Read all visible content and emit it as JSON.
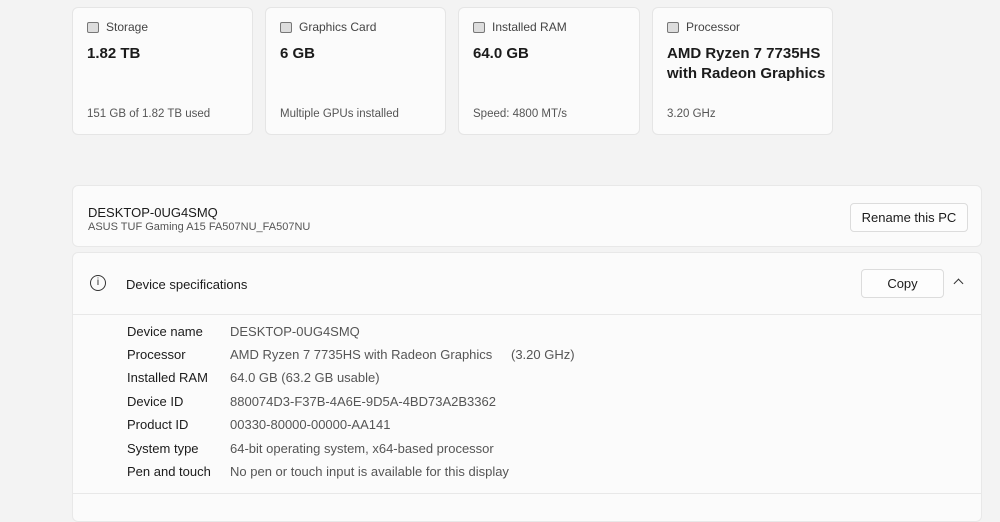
{
  "cards": [
    {
      "label": "Storage",
      "icon": "storage-icon",
      "value": "1.82 TB",
      "sub": "151 GB of 1.82 TB used"
    },
    {
      "label": "Graphics Card",
      "icon": "graphics-card-icon",
      "value": "6 GB",
      "sub": "Multiple GPUs installed"
    },
    {
      "label": "Installed RAM",
      "icon": "ram-icon",
      "value": "64.0 GB",
      "sub": "Speed: 4800 MT/s"
    },
    {
      "label": "Processor",
      "icon": "processor-icon",
      "value": "AMD Ryzen 7 7735HS with Radeon Graphics",
      "sub": "3.20 GHz"
    }
  ],
  "device": {
    "name": "DESKTOP-0UG4SMQ",
    "model": "ASUS TUF Gaming A15 FA507NU_FA507NU",
    "rename_label": "Rename this PC"
  },
  "specs": {
    "title": "Device specifications",
    "copy_label": "Copy",
    "rows": [
      {
        "k": "Device name",
        "v": "DESKTOP-0UG4SMQ"
      },
      {
        "k": "Processor",
        "v": "AMD Ryzen 7 7735HS with Radeon Graphics",
        "extra": "(3.20 GHz)"
      },
      {
        "k": "Installed RAM",
        "v": "64.0 GB (63.2 GB usable)"
      },
      {
        "k": "Device ID",
        "v": "880074D3-F37B-4A6E-9D5A-4BD73A2B3362"
      },
      {
        "k": "Product ID",
        "v": "00330-80000-00000-AA141"
      },
      {
        "k": "System type",
        "v": "64-bit operating system, x64-based processor"
      },
      {
        "k": "Pen and touch",
        "v": "No pen or touch input is available for this display"
      }
    ]
  }
}
